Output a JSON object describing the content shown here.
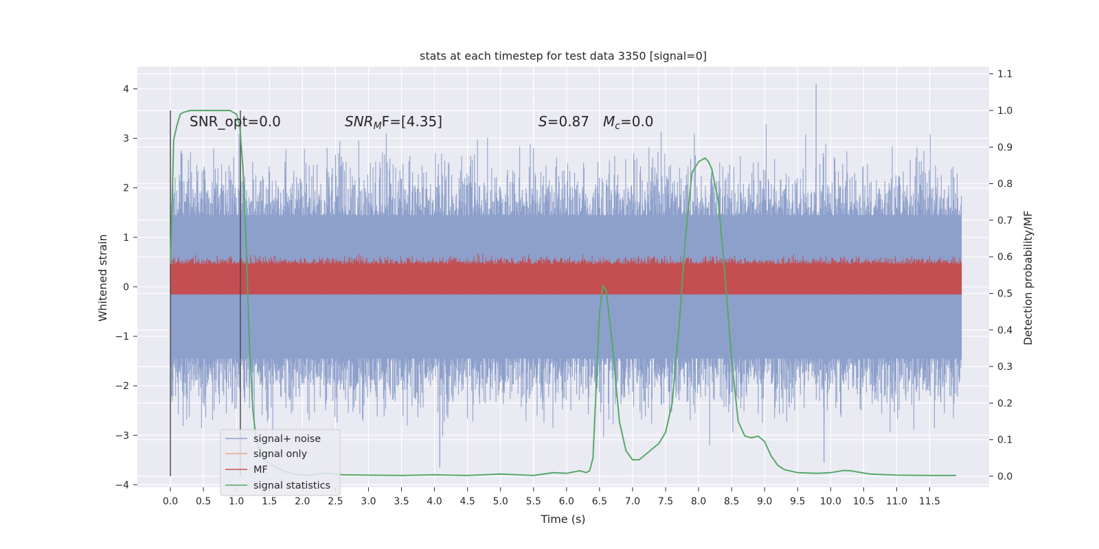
{
  "chart_data": {
    "type": "line",
    "title": "stats at each timestep for test data 3350 [signal=0]",
    "xlabel": "Time (s)",
    "ylabel": "Whitened strain",
    "y2label": "Detection probability/MF",
    "xlim": [
      -0.5,
      12.4
    ],
    "ylim": [
      -4.05,
      4.45
    ],
    "y2lim": [
      -0.03,
      1.12
    ],
    "x_ticks": [
      "0.0",
      "0.5",
      "1.0",
      "1.5",
      "2.0",
      "2.5",
      "3.0",
      "3.5",
      "4.0",
      "4.5",
      "5.0",
      "5.5",
      "6.0",
      "6.5",
      "7.0",
      "7.5",
      "8.0",
      "8.5",
      "9.0",
      "9.5",
      "10.0",
      "10.5",
      "11.0",
      "11.5"
    ],
    "y_ticks": [
      "4",
      "3",
      "2",
      "1",
      "0",
      "−1",
      "−2",
      "−3",
      "−4"
    ],
    "y2_ticks": [
      "1.1",
      "1.0",
      "0.9",
      "0.8",
      "0.7",
      "0.6",
      "0.5",
      "0.4",
      "0.3",
      "0.2",
      "0.1",
      "0.0"
    ],
    "grid": true,
    "legend_position": "lower-left",
    "annotations": {
      "snr_opt": "SNR_opt=0.0",
      "snr_mf_base": "SNR",
      "snr_mf_sub": "M",
      "snr_mf_tail": "F=[4.35]",
      "s_label": "S",
      "s_value": "=0.87",
      "mc_base": "M",
      "mc_sub": "c",
      "mc_value": "=0.0"
    },
    "markers": [
      0.0,
      1.06
    ],
    "colors": {
      "signal_noise": "#8da0cb",
      "signal_only": "#e8a88e",
      "mf": "#c44e52",
      "stats": "#55a868",
      "grid": "#ffffff",
      "axes_bg": "#eaeaf2"
    },
    "series": [
      {
        "name": "signal+ noise",
        "kind": "noise_envelope",
        "t_start": 0.0,
        "t_end": 11.98,
        "dense_band": [
          -1.45,
          1.45
        ],
        "spike_range": [
          -3.65,
          4.1
        ],
        "notable_spikes": [
          {
            "x": 9.78,
            "y": 4.1
          },
          {
            "x": 4.08,
            "y": -3.65
          },
          {
            "x": 9.9,
            "y": -3.55
          }
        ]
      },
      {
        "name": "signal only",
        "kind": "flat",
        "values": [
          {
            "x": 0.0,
            "y": 0.0
          },
          {
            "x": 11.98,
            "y": 0.0
          }
        ]
      },
      {
        "name": "MF",
        "kind": "mf_band",
        "axis": "right",
        "band": [
          0.5,
          0.58
        ],
        "spike_max": 0.62
      },
      {
        "name": "signal statistics",
        "kind": "line",
        "axis": "right",
        "x": [
          0.0,
          0.05,
          0.1,
          0.15,
          0.2,
          0.3,
          0.5,
          0.7,
          0.9,
          1.0,
          1.05,
          1.1,
          1.15,
          1.2,
          1.25,
          1.3,
          1.4,
          1.5,
          1.7,
          1.9,
          2.1,
          2.3,
          2.4,
          2.6,
          3.0,
          3.5,
          4.0,
          4.5,
          5.0,
          5.5,
          5.8,
          6.0,
          6.2,
          6.3,
          6.35,
          6.4,
          6.45,
          6.5,
          6.55,
          6.6,
          6.7,
          6.8,
          6.9,
          7.0,
          7.1,
          7.2,
          7.4,
          7.5,
          7.6,
          7.7,
          7.8,
          7.9,
          8.0,
          8.05,
          8.1,
          8.15,
          8.2,
          8.3,
          8.4,
          8.5,
          8.6,
          8.7,
          8.8,
          8.9,
          9.0,
          9.1,
          9.2,
          9.3,
          9.5,
          9.8,
          10.0,
          10.2,
          10.3,
          10.6,
          11.0,
          11.5,
          11.9
        ],
        "y": [
          0.58,
          0.92,
          0.96,
          0.99,
          0.995,
          1.0,
          1.0,
          1.0,
          1.0,
          0.99,
          0.96,
          0.84,
          0.62,
          0.35,
          0.18,
          0.1,
          0.05,
          0.035,
          0.015,
          0.005,
          0.002,
          0.008,
          0.008,
          0.004,
          0.003,
          0.002,
          0.004,
          0.002,
          0.006,
          0.002,
          0.01,
          0.008,
          0.015,
          0.01,
          0.015,
          0.05,
          0.25,
          0.45,
          0.52,
          0.51,
          0.35,
          0.15,
          0.07,
          0.045,
          0.045,
          0.06,
          0.09,
          0.12,
          0.2,
          0.4,
          0.65,
          0.83,
          0.86,
          0.865,
          0.87,
          0.86,
          0.84,
          0.75,
          0.55,
          0.32,
          0.15,
          0.11,
          0.105,
          0.11,
          0.095,
          0.055,
          0.03,
          0.018,
          0.01,
          0.008,
          0.01,
          0.016,
          0.015,
          0.006,
          0.003,
          0.002,
          0.002
        ]
      }
    ],
    "legend": [
      "signal+ noise",
      "signal only",
      "MF",
      "signal statistics"
    ]
  }
}
